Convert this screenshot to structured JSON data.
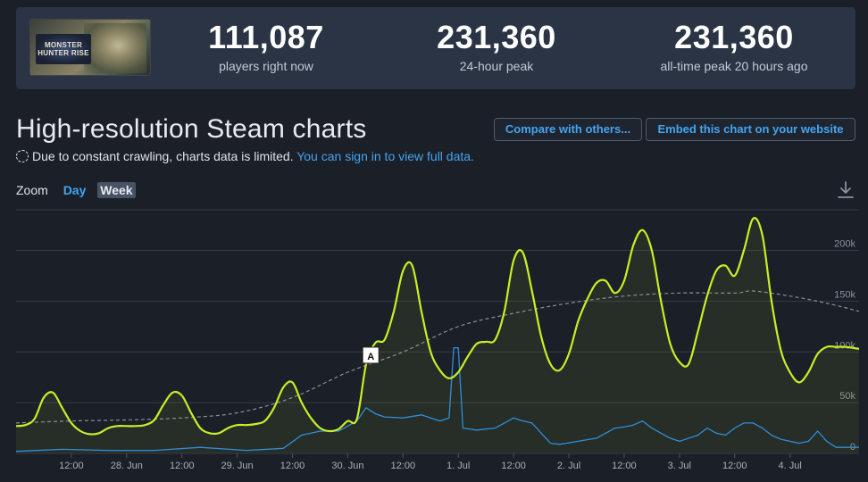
{
  "header": {
    "game_thumb_text": "MONSTER HUNTER RISE",
    "stats": [
      {
        "value": "111,087",
        "label": "players right now"
      },
      {
        "value": "231,360",
        "label": "24-hour peak"
      },
      {
        "value": "231,360",
        "label": "all-time peak 20 hours ago"
      }
    ]
  },
  "title": "High-resolution Steam charts",
  "buttons": {
    "compare": "Compare with others...",
    "embed": "Embed this chart on your website"
  },
  "notice": {
    "text": "Due to constant crawling, charts data is limited.",
    "link": "You can sign in to view full data."
  },
  "zoom": {
    "label": "Zoom",
    "day": "Day",
    "week": "Week"
  },
  "colors": {
    "players": "#c6f025",
    "average": "#8a8f98",
    "twitch": "#2f8fd8",
    "grid": "#333945",
    "accent": "#43a4f2"
  },
  "chart_data": {
    "type": "line",
    "ylim": [
      0,
      240000
    ],
    "yticks": [
      0,
      50000,
      100000,
      150000,
      200000
    ],
    "ytick_labels": [
      "0",
      "50k",
      "100k",
      "150k",
      "200k"
    ],
    "xlim": [
      0,
      183
    ],
    "xticks": [
      {
        "x": 12,
        "label": "12:00"
      },
      {
        "x": 24,
        "label": "28. Jun"
      },
      {
        "x": 36,
        "label": "12:00"
      },
      {
        "x": 48,
        "label": "29. Jun"
      },
      {
        "x": 60,
        "label": "12:00"
      },
      {
        "x": 72,
        "label": "30. Jun"
      },
      {
        "x": 84,
        "label": "12:00"
      },
      {
        "x": 96,
        "label": "1. Jul"
      },
      {
        "x": 108,
        "label": "12:00"
      },
      {
        "x": 120,
        "label": "2. Jul"
      },
      {
        "x": 132,
        "label": "12:00"
      },
      {
        "x": 144,
        "label": "3. Jul"
      },
      {
        "x": 156,
        "label": "12:00"
      },
      {
        "x": 168,
        "label": "4. Jul"
      }
    ],
    "series": [
      {
        "key": "players",
        "points": [
          [
            0,
            27000
          ],
          [
            2,
            28000
          ],
          [
            4,
            34000
          ],
          [
            6,
            55000
          ],
          [
            8,
            60000
          ],
          [
            10,
            45000
          ],
          [
            12,
            30000
          ],
          [
            14,
            22000
          ],
          [
            16,
            19000
          ],
          [
            18,
            20000
          ],
          [
            20,
            25000
          ],
          [
            22,
            27000
          ],
          [
            24,
            27000
          ],
          [
            26,
            27000
          ],
          [
            28,
            28000
          ],
          [
            30,
            33000
          ],
          [
            32,
            48000
          ],
          [
            34,
            60000
          ],
          [
            36,
            57000
          ],
          [
            38,
            40000
          ],
          [
            40,
            25000
          ],
          [
            42,
            20000
          ],
          [
            44,
            20000
          ],
          [
            46,
            25000
          ],
          [
            48,
            28000
          ],
          [
            50,
            28000
          ],
          [
            52,
            29000
          ],
          [
            54,
            32000
          ],
          [
            56,
            45000
          ],
          [
            58,
            65000
          ],
          [
            60,
            70000
          ],
          [
            62,
            50000
          ],
          [
            64,
            35000
          ],
          [
            66,
            25000
          ],
          [
            68,
            22000
          ],
          [
            70,
            24000
          ],
          [
            72,
            32000
          ],
          [
            74,
            34000
          ],
          [
            76,
            88000
          ],
          [
            78,
            109000
          ],
          [
            80,
            112000
          ],
          [
            82,
            140000
          ],
          [
            84,
            180000
          ],
          [
            86,
            185000
          ],
          [
            88,
            140000
          ],
          [
            90,
            100000
          ],
          [
            92,
            82000
          ],
          [
            94,
            74000
          ],
          [
            96,
            80000
          ],
          [
            98,
            95000
          ],
          [
            100,
            108000
          ],
          [
            102,
            110000
          ],
          [
            104,
            112000
          ],
          [
            106,
            140000
          ],
          [
            108,
            190000
          ],
          [
            110,
            198000
          ],
          [
            112,
            160000
          ],
          [
            114,
            115000
          ],
          [
            116,
            88000
          ],
          [
            118,
            82000
          ],
          [
            120,
            98000
          ],
          [
            122,
            130000
          ],
          [
            124,
            152000
          ],
          [
            126,
            168000
          ],
          [
            128,
            170000
          ],
          [
            130,
            158000
          ],
          [
            132,
            170000
          ],
          [
            134,
            205000
          ],
          [
            136,
            220000
          ],
          [
            138,
            200000
          ],
          [
            140,
            150000
          ],
          [
            142,
            108000
          ],
          [
            144,
            90000
          ],
          [
            146,
            88000
          ],
          [
            148,
            120000
          ],
          [
            150,
            155000
          ],
          [
            152,
            180000
          ],
          [
            154,
            185000
          ],
          [
            156,
            175000
          ],
          [
            158,
            200000
          ],
          [
            160,
            231360
          ],
          [
            162,
            215000
          ],
          [
            164,
            150000
          ],
          [
            166,
            102000
          ],
          [
            168,
            80000
          ],
          [
            170,
            70000
          ],
          [
            172,
            80000
          ],
          [
            174,
            98000
          ],
          [
            176,
            105000
          ],
          [
            178,
            105000
          ],
          [
            180,
            105000
          ],
          [
            183,
            103000
          ]
        ]
      },
      {
        "key": "average",
        "points": [
          [
            0,
            30000
          ],
          [
            12,
            32000
          ],
          [
            24,
            33000
          ],
          [
            36,
            35000
          ],
          [
            48,
            40000
          ],
          [
            60,
            55000
          ],
          [
            72,
            80000
          ],
          [
            84,
            100000
          ],
          [
            96,
            125000
          ],
          [
            108,
            138000
          ],
          [
            120,
            148000
          ],
          [
            132,
            155000
          ],
          [
            144,
            158000
          ],
          [
            156,
            158000
          ],
          [
            160,
            160000
          ],
          [
            168,
            155000
          ],
          [
            176,
            148000
          ],
          [
            183,
            140000
          ]
        ]
      },
      {
        "key": "twitch",
        "points": [
          [
            0,
            2000
          ],
          [
            10,
            4000
          ],
          [
            20,
            3000
          ],
          [
            30,
            3000
          ],
          [
            40,
            6000
          ],
          [
            50,
            3000
          ],
          [
            58,
            5000
          ],
          [
            62,
            18000
          ],
          [
            66,
            22000
          ],
          [
            70,
            22000
          ],
          [
            74,
            32000
          ],
          [
            76,
            45000
          ],
          [
            78,
            39000
          ],
          [
            80,
            36000
          ],
          [
            84,
            35000
          ],
          [
            88,
            38000
          ],
          [
            90,
            35000
          ],
          [
            92,
            32000
          ],
          [
            94,
            35000
          ],
          [
            95,
            104000
          ],
          [
            96,
            104000
          ],
          [
            97,
            25000
          ],
          [
            100,
            23000
          ],
          [
            104,
            25000
          ],
          [
            106,
            30000
          ],
          [
            108,
            35000
          ],
          [
            110,
            32000
          ],
          [
            112,
            30000
          ],
          [
            114,
            20000
          ],
          [
            116,
            10000
          ],
          [
            118,
            9000
          ],
          [
            122,
            12000
          ],
          [
            126,
            15000
          ],
          [
            128,
            20000
          ],
          [
            130,
            25000
          ],
          [
            132,
            26000
          ],
          [
            134,
            28000
          ],
          [
            136,
            32000
          ],
          [
            138,
            25000
          ],
          [
            140,
            20000
          ],
          [
            142,
            15000
          ],
          [
            144,
            12000
          ],
          [
            148,
            18000
          ],
          [
            150,
            25000
          ],
          [
            152,
            20000
          ],
          [
            154,
            18000
          ],
          [
            156,
            25000
          ],
          [
            158,
            30000
          ],
          [
            160,
            30000
          ],
          [
            162,
            25000
          ],
          [
            164,
            18000
          ],
          [
            166,
            14000
          ],
          [
            168,
            12000
          ],
          [
            170,
            10000
          ],
          [
            172,
            12000
          ],
          [
            174,
            22000
          ],
          [
            176,
            12000
          ],
          [
            178,
            6000
          ],
          [
            183,
            6000
          ]
        ]
      }
    ],
    "annotation": {
      "label": "A",
      "x": 77,
      "y": 95000
    },
    "grid": true,
    "legend": "none"
  }
}
